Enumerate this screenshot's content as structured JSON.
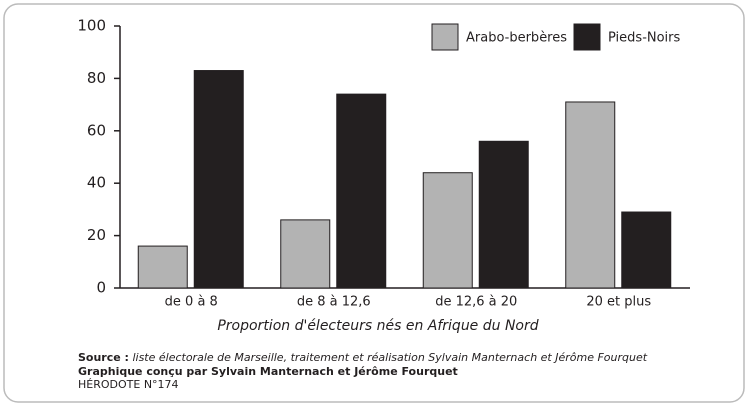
{
  "chart_data": {
    "type": "bar",
    "categories": [
      "de 0 à 8",
      "de 8 à 12,6",
      "de 12,6 à 20",
      "20 et plus"
    ],
    "series": [
      {
        "name": "Arabo-berbères",
        "color": "#b3b3b3",
        "values": [
          16,
          26,
          44,
          71
        ]
      },
      {
        "name": "Pieds-Noirs",
        "color": "#231f20",
        "values": [
          83,
          74,
          56,
          29
        ]
      }
    ],
    "ylim": [
      0,
      100
    ],
    "yticks": [
      0,
      20,
      40,
      60,
      80,
      100
    ],
    "x_label": "Proportion d'électeurs nés en Afrique du Nord",
    "legend": "top-right",
    "source_label": "Source :",
    "source_text": "liste électorale de Marseille, traitement et réalisation Sylvain Manternach et Jérôme Fourquet",
    "credit": "Graphique conçu par Sylvain Manternach et Jérôme Fourquet",
    "publication": "HÉRODOTE N°174"
  }
}
